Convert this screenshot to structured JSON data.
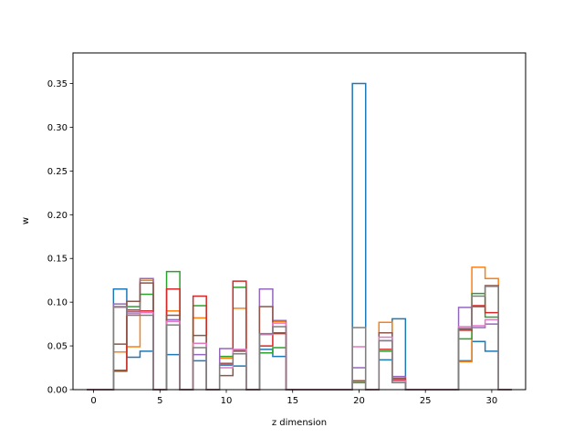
{
  "chart_data": {
    "type": "step",
    "title": "",
    "xlabel": "z dimension",
    "ylabel": "w",
    "xlim": [
      -1.55,
      32.55
    ],
    "ylim": [
      0,
      0.385
    ],
    "x_ticks": [
      0,
      5,
      10,
      15,
      20,
      25,
      30
    ],
    "y_ticks": [
      0.0,
      0.05,
      0.1,
      0.15,
      0.2,
      0.25,
      0.3,
      0.35
    ],
    "x_tick_labels": [
      "0",
      "5",
      "10",
      "15",
      "20",
      "25",
      "30"
    ],
    "y_tick_labels": [
      "0.00",
      "0.05",
      "0.10",
      "0.15",
      "0.20",
      "0.25",
      "0.30",
      "0.35"
    ],
    "grid": false,
    "legend": "none",
    "bins_x": [
      0,
      1,
      2,
      3,
      4,
      5,
      6,
      7,
      8,
      9,
      10,
      11,
      12,
      13,
      14,
      15,
      16,
      17,
      18,
      19,
      20,
      21,
      22,
      23,
      24,
      25,
      26,
      27,
      28,
      29,
      30,
      31
    ],
    "series": [
      {
        "color": "#1f77b4",
        "values": [
          0,
          0,
          0.115,
          0.037,
          0.044,
          0,
          0.04,
          0,
          0.033,
          0,
          0.028,
          0.027,
          0,
          0.046,
          0.038,
          0,
          0,
          0,
          0,
          0,
          0.35,
          0,
          0.034,
          0.081,
          0,
          0,
          0,
          0,
          0.033,
          0.055,
          0.044,
          0
        ]
      },
      {
        "color": "#ff7f0e",
        "values": [
          0,
          0,
          0.043,
          0.049,
          0.125,
          0,
          0.09,
          0,
          0.082,
          0,
          0.036,
          0.093,
          0,
          0.063,
          0.078,
          0,
          0,
          0,
          0,
          0,
          0.01,
          0,
          0.077,
          0.012,
          0,
          0,
          0,
          0,
          0.032,
          0.14,
          0.127,
          0
        ]
      },
      {
        "color": "#2ca02c",
        "values": [
          0,
          0,
          0.021,
          0.095,
          0.109,
          0,
          0.135,
          0,
          0.096,
          0,
          0.038,
          0.117,
          0,
          0.042,
          0.048,
          0,
          0,
          0,
          0,
          0,
          0.008,
          0,
          0.044,
          0.01,
          0,
          0,
          0,
          0,
          0.058,
          0.11,
          0.083,
          0
        ]
      },
      {
        "color": "#d62728",
        "values": [
          0,
          0,
          0.022,
          0.091,
          0.09,
          0,
          0.115,
          0,
          0.107,
          0,
          0.03,
          0.124,
          0,
          0.05,
          0.064,
          0,
          0,
          0,
          0,
          0,
          0.01,
          0,
          0.046,
          0.011,
          0,
          0,
          0,
          0,
          0.068,
          0.096,
          0.088,
          0
        ]
      },
      {
        "color": "#9467bd",
        "values": [
          0,
          0,
          0.098,
          0.089,
          0.127,
          0,
          0.08,
          0,
          0.04,
          0,
          0.047,
          0.045,
          0,
          0.115,
          0.079,
          0,
          0,
          0,
          0,
          0,
          0.025,
          0,
          0.056,
          0.015,
          0,
          0,
          0,
          0,
          0.094,
          0.071,
          0.075,
          0
        ]
      },
      {
        "color": "#8c564b",
        "values": [
          0,
          0,
          0.052,
          0.101,
          0.122,
          0,
          0.085,
          0,
          0.062,
          0,
          0.016,
          0.044,
          0,
          0.095,
          0.065,
          0,
          0,
          0,
          0,
          0,
          0.01,
          0,
          0.065,
          0.013,
          0,
          0,
          0,
          0,
          0.069,
          0.095,
          0.119,
          0
        ]
      },
      {
        "color": "#e377c2",
        "values": [
          0,
          0,
          0.094,
          0.087,
          0.088,
          0,
          0.078,
          0,
          0.053,
          0,
          0.025,
          0.046,
          0,
          0.063,
          0.076,
          0,
          0,
          0,
          0,
          0,
          0.049,
          0,
          0.06,
          0.01,
          0,
          0,
          0,
          0,
          0.072,
          0.073,
          0.08,
          0
        ]
      },
      {
        "color": "#7f7f7f",
        "values": [
          0,
          0,
          0.095,
          0.085,
          0.085,
          0,
          0.074,
          0,
          0.048,
          0,
          0.029,
          0.041,
          0,
          0.064,
          0.072,
          0,
          0,
          0,
          0,
          0,
          0.071,
          0,
          0.056,
          0.008,
          0,
          0,
          0,
          0,
          0.07,
          0.107,
          0.118,
          0
        ]
      }
    ]
  }
}
